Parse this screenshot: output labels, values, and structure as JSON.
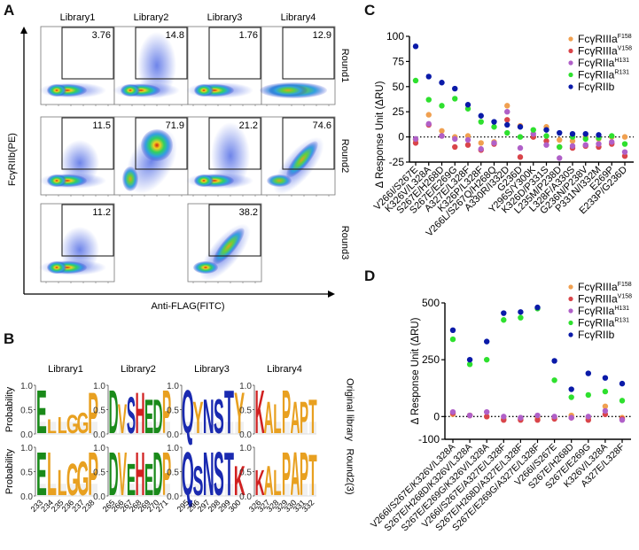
{
  "panels": {
    "A": {
      "letter": "A",
      "columns": [
        "Library1",
        "Library2",
        "Library3",
        "Library4"
      ],
      "rows": [
        "Round1",
        "Round2",
        "Round3"
      ],
      "y_axis_label": "FcγRIIb(PE)",
      "x_axis_label": "Anti-FLAG(FITC)",
      "gates": [
        {
          "row": 0,
          "col": 0,
          "value": "3.76",
          "shape": "low"
        },
        {
          "row": 0,
          "col": 1,
          "value": "14.8",
          "shape": "spread"
        },
        {
          "row": 0,
          "col": 2,
          "value": "1.76",
          "shape": "low"
        },
        {
          "row": 0,
          "col": 3,
          "value": "12.9",
          "shape": "faint"
        },
        {
          "row": 1,
          "col": 0,
          "value": "11.5",
          "shape": "low"
        },
        {
          "row": 1,
          "col": 1,
          "value": "71.9",
          "shape": "high"
        },
        {
          "row": 1,
          "col": 2,
          "value": "21.2",
          "shape": "spread"
        },
        {
          "row": 1,
          "col": 3,
          "value": "74.6",
          "shape": "diag"
        },
        {
          "row": 2,
          "col": 0,
          "value": "11.2",
          "shape": "low"
        },
        {
          "row": 2,
          "col": 2,
          "value": "38.2",
          "shape": "diag2"
        }
      ]
    },
    "B": {
      "letter": "B",
      "columns": [
        "Library1",
        "Library2",
        "Library3",
        "Library4"
      ],
      "rows": [
        "Original library",
        "Round2(3)"
      ],
      "y_axis_label": "Probability",
      "y_ticks": [
        "1.0",
        "0.5",
        "0.0"
      ],
      "positions": [
        [
          "233",
          "234",
          "235",
          "236",
          "237",
          "238"
        ],
        [
          "265",
          "266",
          "267",
          "268",
          "269",
          "270",
          "271"
        ],
        [
          "295",
          "296",
          "297",
          "298",
          "299",
          "300"
        ],
        [
          "326",
          "327",
          "328",
          "329",
          "330",
          "331",
          "332"
        ]
      ],
      "logos": [
        [
          [
            {
              "l": "E",
              "c": "#1a8a1a",
              "h": 0.95
            },
            {
              "l": "L",
              "c": "#e8a020",
              "h": 0.3
            },
            {
              "l": "L",
              "c": "#e8a020",
              "h": 0.35
            },
            {
              "l": "G",
              "c": "#e8a020",
              "h": 0.4
            },
            {
              "l": "G",
              "c": "#e8a020",
              "h": 0.45
            },
            {
              "l": "P",
              "c": "#e8a020",
              "h": 0.9
            }
          ],
          [
            {
              "l": "D",
              "c": "#1a8a1a",
              "h": 0.95
            },
            {
              "l": "V",
              "c": "#e8a020",
              "h": 0.65
            },
            {
              "l": "S",
              "c": "#1a2ab0",
              "h": 0.8
            },
            {
              "l": "H",
              "c": "#d02020",
              "h": 0.9
            },
            {
              "l": "E",
              "c": "#1a8a1a",
              "h": 0.75
            },
            {
              "l": "D",
              "c": "#1a8a1a",
              "h": 0.75
            },
            {
              "l": "P",
              "c": "#e8a020",
              "h": 0.95
            }
          ],
          [
            {
              "l": "Q",
              "c": "#1a2ab0",
              "h": 0.95
            },
            {
              "l": "Y",
              "c": "#e8a020",
              "h": 0.7
            },
            {
              "l": "N",
              "c": "#1a2ab0",
              "h": 0.75
            },
            {
              "l": "S",
              "c": "#1a2ab0",
              "h": 0.75
            },
            {
              "l": "T",
              "c": "#1a2ab0",
              "h": 0.95
            },
            {
              "l": "Y",
              "c": "#e8a020",
              "h": 0.9
            }
          ],
          [
            {
              "l": "K",
              "c": "#d02020",
              "h": 0.95
            },
            {
              "l": "A",
              "c": "#e8a020",
              "h": 0.7
            },
            {
              "l": "L",
              "c": "#e8a020",
              "h": 0.65
            },
            {
              "l": "P",
              "c": "#e8a020",
              "h": 0.95
            },
            {
              "l": "A",
              "c": "#e8a020",
              "h": 0.7
            },
            {
              "l": "P",
              "c": "#e8a020",
              "h": 0.7
            },
            {
              "l": "T",
              "c": "#e8a020",
              "h": 0.75
            }
          ]
        ],
        [
          [
            {
              "l": "E",
              "c": "#1a8a1a",
              "h": 0.95
            },
            {
              "l": "L",
              "c": "#e8a020",
              "h": 0.95
            },
            {
              "l": "L",
              "c": "#e8a020",
              "h": 0.55
            },
            {
              "l": "G",
              "c": "#e8a020",
              "h": 0.7
            },
            {
              "l": "G",
              "c": "#e8a020",
              "h": 0.75
            },
            {
              "l": "P",
              "c": "#e8a020",
              "h": 0.95
            }
          ],
          [
            {
              "l": "D",
              "c": "#1a8a1a",
              "h": 0.95
            },
            {
              "l": "V",
              "c": "#e8a020",
              "h": 0.95
            },
            {
              "l": "E",
              "c": "#1a8a1a",
              "h": 0.7
            },
            {
              "l": "H",
              "c": "#d02020",
              "h": 0.95
            },
            {
              "l": "E",
              "c": "#1a8a1a",
              "h": 0.7
            },
            {
              "l": "D",
              "c": "#1a8a1a",
              "h": 0.95
            },
            {
              "l": "P",
              "c": "#e8a020",
              "h": 0.95
            }
          ],
          [
            {
              "l": "Q",
              "c": "#1a2ab0",
              "h": 0.95
            },
            {
              "l": "S",
              "c": "#1a2ab0",
              "h": 0.65
            },
            {
              "l": "N",
              "c": "#1a2ab0",
              "h": 0.95
            },
            {
              "l": "S",
              "c": "#1a2ab0",
              "h": 0.95
            },
            {
              "l": "T",
              "c": "#1a2ab0",
              "h": 0.95
            },
            {
              "l": "K",
              "c": "#d02020",
              "h": 0.65
            }
          ],
          [
            {
              "l": "K",
              "c": "#d02020",
              "h": 0.55
            },
            {
              "l": "A",
              "c": "#e8a020",
              "h": 0.65
            },
            {
              "l": "L",
              "c": "#e8a020",
              "h": 0.55
            },
            {
              "l": "P",
              "c": "#e8a020",
              "h": 0.95
            },
            {
              "l": "A",
              "c": "#e8a020",
              "h": 0.95
            },
            {
              "l": "P",
              "c": "#e8a020",
              "h": 0.95
            },
            {
              "l": "T",
              "c": "#e8a020",
              "h": 0.9
            }
          ]
        ]
      ]
    },
    "C": {
      "letter": "C"
    },
    "D": {
      "letter": "D"
    }
  },
  "chart_data": [
    {
      "panel": "C",
      "type": "scatter",
      "title": "",
      "xlabel": "",
      "ylabel": "Δ Response Unit (ΔRU)",
      "ylim": [
        -25,
        100
      ],
      "yticks": [
        "100",
        "75",
        "50",
        "25",
        "0",
        "-25"
      ],
      "legend_position": "top-right",
      "grid": false,
      "reference_line": 0,
      "categories": [
        "V266I/S267E",
        "K326V/L328A",
        "S267E/H268D",
        "S267E/E269G",
        "A327E/L328F",
        "K326P/L328F",
        "V266L/S267Q/H268Q",
        "A330R/I332D",
        "G236D",
        "Y296S/Y300K",
        "K326D/P331S",
        "L235M/P238D",
        "L328F/A330S",
        "G236N/P238V",
        "P331N/I332M",
        "E269P",
        "E233P/G236D"
      ],
      "series": [
        {
          "name": "FcγRIIIa",
          "sup": "F158",
          "color": "#f0a050",
          "values": [
            -3,
            22,
            6,
            0,
            1,
            -6,
            -5,
            31,
            11,
            0,
            10,
            -3,
            -4,
            0,
            -2,
            0,
            0
          ]
        },
        {
          "name": "FcγRIIIa",
          "sup": "V158",
          "color": "#d9454a",
          "values": [
            -6,
            12,
            1,
            -10,
            -8,
            -13,
            -7,
            17,
            -20,
            0,
            -4,
            -10,
            -11,
            -9,
            -10,
            -7,
            -19
          ]
        },
        {
          "name": "FcγRIIa",
          "sup": "H131",
          "color": "#b060c8",
          "values": [
            -2,
            13,
            1,
            -2,
            -3,
            -12,
            -6,
            25,
            -11,
            3,
            -8,
            -21,
            -9,
            -8,
            -7,
            -5,
            -15
          ]
        },
        {
          "name": "FcγRIIa",
          "sup": "R131",
          "color": "#2ee02e",
          "values": [
            56,
            37,
            31,
            38,
            28,
            15,
            10,
            4,
            0,
            7,
            1,
            -10,
            0,
            -2,
            -1,
            1,
            -7
          ]
        },
        {
          "name": "FcγRIIb",
          "sup": "",
          "color": "#0a1aa8",
          "values": [
            90,
            60,
            54,
            48,
            32,
            21,
            15,
            12,
            10,
            null,
            7,
            4,
            3,
            3,
            2,
            null,
            null
          ]
        }
      ]
    },
    {
      "panel": "D",
      "type": "scatter",
      "title": "",
      "xlabel": "",
      "ylabel": "Δ Response Unit (ΔRU)",
      "ylim": [
        -100,
        500
      ],
      "yticks": [
        "500",
        "250",
        "0",
        "-100"
      ],
      "legend_position": "top-right",
      "grid": false,
      "reference_line": 0,
      "categories": [
        "V266I/S267E/K326V/L328A",
        "S267E/H268D/K326V/L328A",
        "S267E/E269G/K326V/L328A",
        "V266I/S267E/A327E/L328F",
        "S267E/H268D/A327E/L328F",
        "S267E/E269G/A327E/L328F",
        "V266I/S267E",
        "S267E/H268D",
        "S267E/E269G",
        "K326V/L328A",
        "A327E/L328F"
      ],
      "series": [
        {
          "name": "FcγRIIIa",
          "sup": "F158",
          "color": "#f0a050",
          "values": [
            10,
            5,
            0,
            -10,
            -10,
            -5,
            -5,
            5,
            -5,
            45,
            -5
          ]
        },
        {
          "name": "FcγRIIIa",
          "sup": "V158",
          "color": "#d9454a",
          "values": [
            15,
            5,
            0,
            -15,
            -15,
            -15,
            -10,
            -5,
            -15,
            10,
            -10
          ]
        },
        {
          "name": "FcγRIIa",
          "sup": "H131",
          "color": "#b060c8",
          "values": [
            20,
            5,
            20,
            0,
            -5,
            5,
            0,
            -5,
            0,
            25,
            -15
          ]
        },
        {
          "name": "FcγRIIa",
          "sup": "R131",
          "color": "#2ee02e",
          "values": [
            340,
            230,
            250,
            425,
            435,
            475,
            160,
            85,
            95,
            110,
            70
          ]
        },
        {
          "name": "FcγRIIb",
          "sup": "",
          "color": "#0a1aa8",
          "values": [
            380,
            250,
            330,
            455,
            460,
            480,
            245,
            120,
            190,
            170,
            145
          ]
        }
      ]
    }
  ]
}
